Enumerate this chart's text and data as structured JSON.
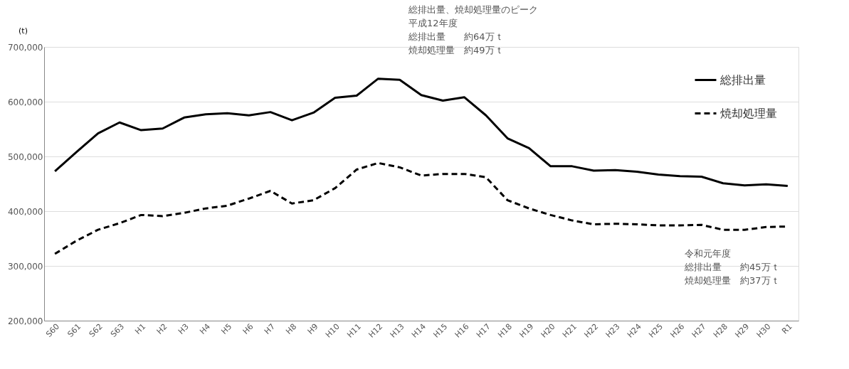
{
  "chart_data": {
    "type": "line",
    "ylabel": "(t)",
    "categories": [
      "S60",
      "S61",
      "S62",
      "S63",
      "H1",
      "H2",
      "H3",
      "H4",
      "H5",
      "H6",
      "H7",
      "H8",
      "H9",
      "H10",
      "H11",
      "H12",
      "H13",
      "H14",
      "H15",
      "H16",
      "H17",
      "H18",
      "H19",
      "H20",
      "H21",
      "H22",
      "H23",
      "H24",
      "H25",
      "H26",
      "H27",
      "H28",
      "H29",
      "H30",
      "R1"
    ],
    "series": [
      {
        "name": "総排出量",
        "color": "#000000",
        "line_style": "solid",
        "values": [
          473000,
          508000,
          542000,
          562000,
          548000,
          551000,
          571000,
          577000,
          579000,
          575000,
          581000,
          566000,
          580000,
          607000,
          611000,
          642000,
          640000,
          612000,
          602000,
          608000,
          575000,
          533000,
          515000,
          482000,
          482000,
          474000,
          475000,
          472000,
          467000,
          464000,
          463000,
          451000,
          447000,
          449000,
          446000
        ]
      },
      {
        "name": "焼却処理量",
        "color": "#000000",
        "line_style": "dashed",
        "values": [
          322000,
          346000,
          366000,
          378000,
          393000,
          391000,
          397000,
          405000,
          410000,
          423000,
          437000,
          414000,
          420000,
          442000,
          476000,
          488000,
          480000,
          465000,
          468000,
          468000,
          462000,
          420000,
          405000,
          393000,
          383000,
          376000,
          377000,
          376000,
          374000,
          374000,
          375000,
          366000,
          366000,
          371000,
          372000
        ]
      }
    ],
    "ylim": [
      200000,
      700000
    ],
    "yticks": [
      {
        "value": 200000,
        "label": "200,000"
      },
      {
        "value": 300000,
        "label": "300,000"
      },
      {
        "value": 400000,
        "label": "400,000"
      },
      {
        "value": 500000,
        "label": "500,000"
      },
      {
        "value": 600000,
        "label": "600,000"
      },
      {
        "value": 700000,
        "label": "700,000"
      }
    ],
    "grid": "y",
    "legend": "top right",
    "marker": "none",
    "annotations": [
      "総排出量、焼却処理量のピーク",
      "平成12年度",
      "総排出量　　約64万ｔ",
      "焼却処理量　約49万ｔ",
      "令和元年度",
      "総排出量　　約45万ｔ",
      "焼却処理量　約37万ｔ"
    ]
  }
}
